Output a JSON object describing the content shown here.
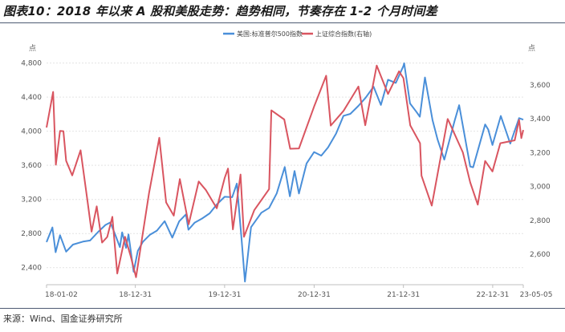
{
  "figure": {
    "title": "图表10：2018 年以来 A 股和美股走势：趋势相同，节奏存在 1-2 个月时间差",
    "source": "来源：Wind、国金证券研究所"
  },
  "chart_data": {
    "type": "line",
    "left_axis_unit": "点",
    "right_axis_unit": "点",
    "left_ylim": [
      2200,
      4900
    ],
    "right_ylim": [
      2420,
      3780
    ],
    "left_ticks": [
      "2,400",
      "2,800",
      "3,200",
      "3,600",
      "4,000",
      "4,400",
      "4,800"
    ],
    "right_ticks": [
      "2,600",
      "2,800",
      "3,000",
      "3,200",
      "3,400",
      "3,600"
    ],
    "x_ticks": [
      "18-01-02",
      "18-12-31",
      "19-12-31",
      "20-12-31",
      "21-12-31",
      "22-12-31",
      "23-05-05"
    ],
    "grid": "horizontal",
    "legend_position": "top-center",
    "series": [
      {
        "name": "美国:标准普尔500指数",
        "axis": "left",
        "color": "#4a8fd9",
        "points": [
          [
            "2018-01-02",
            2700
          ],
          [
            "2018-01-26",
            2872
          ],
          [
            "2018-02-08",
            2581
          ],
          [
            "2018-02-26",
            2780
          ],
          [
            "2018-03-23",
            2588
          ],
          [
            "2018-04-20",
            2670
          ],
          [
            "2018-05-31",
            2705
          ],
          [
            "2018-06-29",
            2718
          ],
          [
            "2018-07-31",
            2816
          ],
          [
            "2018-08-31",
            2901
          ],
          [
            "2018-09-20",
            2930
          ],
          [
            "2018-10-10",
            2785
          ],
          [
            "2018-10-29",
            2641
          ],
          [
            "2018-11-07",
            2813
          ],
          [
            "2018-11-23",
            2632
          ],
          [
            "2018-12-03",
            2790
          ],
          [
            "2018-12-24",
            2351
          ],
          [
            "2019-01-10",
            2596
          ],
          [
            "2019-01-31",
            2704
          ],
          [
            "2019-02-28",
            2784
          ],
          [
            "2019-03-29",
            2834
          ],
          [
            "2019-04-30",
            2945
          ],
          [
            "2019-05-31",
            2752
          ],
          [
            "2019-06-28",
            2942
          ],
          [
            "2019-07-26",
            3025
          ],
          [
            "2019-08-05",
            2844
          ],
          [
            "2019-08-30",
            2926
          ],
          [
            "2019-09-30",
            2976
          ],
          [
            "2019-10-31",
            3037
          ],
          [
            "2019-11-29",
            3141
          ],
          [
            "2019-12-31",
            3231
          ],
          [
            "2020-01-31",
            3226
          ],
          [
            "2020-02-19",
            3386
          ],
          [
            "2020-03-09",
            2746
          ],
          [
            "2020-03-23",
            2237
          ],
          [
            "2020-04-17",
            2875
          ],
          [
            "2020-05-29",
            3044
          ],
          [
            "2020-06-30",
            3100
          ],
          [
            "2020-07-31",
            3271
          ],
          [
            "2020-09-02",
            3580
          ],
          [
            "2020-09-23",
            3237
          ],
          [
            "2020-10-12",
            3534
          ],
          [
            "2020-10-30",
            3270
          ],
          [
            "2020-11-30",
            3622
          ],
          [
            "2020-12-31",
            3756
          ],
          [
            "2021-01-29",
            3714
          ],
          [
            "2021-02-26",
            3811
          ],
          [
            "2021-03-31",
            3973
          ],
          [
            "2021-04-30",
            4181
          ],
          [
            "2021-05-28",
            4204
          ],
          [
            "2021-06-30",
            4298
          ],
          [
            "2021-07-30",
            4395
          ],
          [
            "2021-08-31",
            4523
          ],
          [
            "2021-09-30",
            4308
          ],
          [
            "2021-10-29",
            4605
          ],
          [
            "2021-11-30",
            4567
          ],
          [
            "2021-12-31",
            4766
          ],
          [
            "2022-01-03",
            4797
          ],
          [
            "2022-01-27",
            4326
          ],
          [
            "2022-02-23",
            4225
          ],
          [
            "2022-03-08",
            4170
          ],
          [
            "2022-03-29",
            4631
          ],
          [
            "2022-04-29",
            4132
          ],
          [
            "2022-05-20",
            3901
          ],
          [
            "2022-06-16",
            3667
          ],
          [
            "2022-07-29",
            4130
          ],
          [
            "2022-08-16",
            4305
          ],
          [
            "2022-09-30",
            3586
          ],
          [
            "2022-10-12",
            3577
          ],
          [
            "2022-11-30",
            4080
          ],
          [
            "2022-12-13",
            4019
          ],
          [
            "2022-12-30",
            3839
          ],
          [
            "2023-02-02",
            4179
          ],
          [
            "2023-03-13",
            3855
          ],
          [
            "2023-04-18",
            4154
          ],
          [
            "2023-05-05",
            4136
          ]
        ]
      },
      {
        "name": "上证综合指数(右轴)",
        "axis": "right",
        "color": "#d95560",
        "points": [
          [
            "2018-01-02",
            3349
          ],
          [
            "2018-01-29",
            3559
          ],
          [
            "2018-02-09",
            3129
          ],
          [
            "2018-02-26",
            3329
          ],
          [
            "2018-03-12",
            3327
          ],
          [
            "2018-03-23",
            3152
          ],
          [
            "2018-04-17",
            3066
          ],
          [
            "2018-05-21",
            3214
          ],
          [
            "2018-06-19",
            2908
          ],
          [
            "2018-07-05",
            2733
          ],
          [
            "2018-07-26",
            2883
          ],
          [
            "2018-08-17",
            2669
          ],
          [
            "2018-09-07",
            2702
          ],
          [
            "2018-09-28",
            2821
          ],
          [
            "2018-10-18",
            2486
          ],
          [
            "2018-11-19",
            2703
          ],
          [
            "2018-12-11",
            2594
          ],
          [
            "2019-01-03",
            2464
          ],
          [
            "2019-02-25",
            2961
          ],
          [
            "2019-04-08",
            3288
          ],
          [
            "2019-05-06",
            2906
          ],
          [
            "2019-06-06",
            2828
          ],
          [
            "2019-07-01",
            3044
          ],
          [
            "2019-08-06",
            2777
          ],
          [
            "2019-09-16",
            3030
          ],
          [
            "2019-10-16",
            2978
          ],
          [
            "2019-11-29",
            2871
          ],
          [
            "2019-12-31",
            3050
          ],
          [
            "2020-01-14",
            3106
          ],
          [
            "2020-02-03",
            2747
          ],
          [
            "2020-03-05",
            3071
          ],
          [
            "2020-03-19",
            2703
          ],
          [
            "2020-04-30",
            2860
          ],
          [
            "2020-06-30",
            2985
          ],
          [
            "2020-07-09",
            3450
          ],
          [
            "2020-08-31",
            3396
          ],
          [
            "2020-09-24",
            3223
          ],
          [
            "2020-10-30",
            3225
          ],
          [
            "2020-12-31",
            3473
          ],
          [
            "2021-02-18",
            3655
          ],
          [
            "2021-03-09",
            3360
          ],
          [
            "2021-04-30",
            3447
          ],
          [
            "2021-06-30",
            3591
          ],
          [
            "2021-07-28",
            3362
          ],
          [
            "2021-09-13",
            3715
          ],
          [
            "2021-10-29",
            3547
          ],
          [
            "2021-12-13",
            3681
          ],
          [
            "2021-12-31",
            3640
          ],
          [
            "2022-01-28",
            3361
          ],
          [
            "2022-03-09",
            3256
          ],
          [
            "2022-03-15",
            3064
          ],
          [
            "2022-04-26",
            2887
          ],
          [
            "2022-06-30",
            3399
          ],
          [
            "2022-07-04",
            3388
          ],
          [
            "2022-08-31",
            3202
          ],
          [
            "2022-09-30",
            3024
          ],
          [
            "2022-10-31",
            2893
          ],
          [
            "2022-11-30",
            3151
          ],
          [
            "2022-12-30",
            3089
          ],
          [
            "2023-01-31",
            3256
          ],
          [
            "2023-03-31",
            3273
          ],
          [
            "2023-04-18",
            3394
          ],
          [
            "2023-04-27",
            3286
          ],
          [
            "2023-05-05",
            3334
          ]
        ]
      }
    ]
  }
}
